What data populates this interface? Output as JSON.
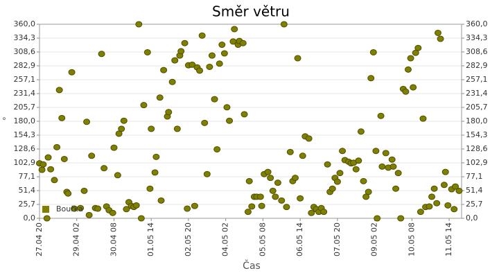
{
  "chart_data": {
    "type": "scatter",
    "title": "Směr větru",
    "x_label": "Čas",
    "y_label": "°",
    "xlim": [
      "27.04 20",
      "12.05 00"
    ],
    "xticks": [
      "27.04 20",
      "29.04 02",
      "30.04 08",
      "01.05 14",
      "02.05 20",
      "04.05 02",
      "05.05 08",
      "06.05 14",
      "07.05 20",
      "09.05 02",
      "10.05 08",
      "11.05 14"
    ],
    "ylim": [
      0,
      360
    ],
    "yticks": [
      {
        "value": 0,
        "label": "0,0"
      },
      {
        "value": 25.7,
        "label": "25,7"
      },
      {
        "value": 51.4,
        "label": "51,4"
      },
      {
        "value": 77.1,
        "label": "77,1"
      },
      {
        "value": 102.9,
        "label": "102,9"
      },
      {
        "value": 128.6,
        "label": "128,6"
      },
      {
        "value": 154.3,
        "label": "154,3"
      },
      {
        "value": 180,
        "label": "180,0"
      },
      {
        "value": 205.7,
        "label": "205,7"
      },
      {
        "value": 231.4,
        "label": "231,4"
      },
      {
        "value": 257.1,
        "label": "257,1"
      },
      {
        "value": 282.9,
        "label": "282,9"
      },
      {
        "value": 308.6,
        "label": "308,6"
      },
      {
        "value": 334.3,
        "label": "334,3"
      },
      {
        "value": 360,
        "label": "360,0"
      }
    ],
    "grid": true,
    "legend": "lower left",
    "series": [
      {
        "name": "Bouřka",
        "color": "#808000",
        "x": [
          "27.04 20",
          "27.04 22",
          "27.04 23",
          "28.04 02",
          "28.04 03",
          "28.04 05",
          "28.04 08",
          "28.04 10",
          "28.04 12",
          "28.04 14",
          "28.04 16",
          "28.04 18",
          "28.04 19",
          "28.04 22",
          "29.04 00",
          "29.04 05",
          "29.04 08",
          "29.04 10",
          "29.04 12",
          "29.04 14",
          "29.04 17",
          "29.04 19",
          "29.04 22",
          "30.04 00",
          "30.04 02",
          "30.04 04",
          "30.04 07",
          "30.04 08",
          "30.04 11",
          "30.04 12",
          "30.04 14",
          "30.04 16",
          "30.04 18",
          "30.04 20",
          "30.04 22",
          "01.05 00",
          "01.05 02",
          "01.05 04",
          "01.05 06",
          "01.05 08",
          "01.05 11",
          "01.05 13",
          "01.05 14",
          "01.05 17",
          "01.05 18",
          "01.05 21",
          "01.05 22",
          "02.05 00",
          "02.05 03",
          "02.05 04",
          "02.05 07",
          "02.05 09",
          "02.05 11",
          "02.05 13",
          "02.05 14",
          "02.05 17",
          "02.05 19",
          "02.05 20",
          "02.05 23",
          "03.05 01",
          "03.05 03",
          "03.05 05",
          "03.05 07",
          "03.05 09",
          "03.05 11",
          "03.05 13",
          "03.05 15",
          "03.05 17",
          "03.05 19",
          "03.05 21",
          "03.05 23",
          "04.05 01",
          "04.05 03",
          "04.05 05",
          "04.05 08",
          "04.05 09",
          "04.05 12",
          "04.05 13",
          "04.05 16",
          "04.05 17",
          "04.05 20",
          "04.05 21",
          "04.05 23",
          "05.05 01",
          "05.05 03",
          "05.05 06",
          "05.05 07",
          "05.05 09",
          "05.05 12",
          "05.05 14",
          "05.05 16",
          "05.05 18",
          "05.05 20",
          "05.05 23",
          "06.05 01",
          "06.05 03",
          "06.05 06",
          "06.05 08",
          "06.05 10",
          "06.05 12",
          "06.05 14",
          "06.05 16",
          "06.05 18",
          "06.05 21",
          "06.05 23",
          "07.05 01",
          "07.05 03",
          "07.05 05",
          "07.05 07",
          "07.05 09",
          "07.05 12",
          "07.05 14",
          "07.05 16",
          "07.05 18",
          "07.05 20",
          "07.05 22",
          "08.05 00",
          "08.05 02",
          "08.05 05",
          "08.05 07",
          "08.05 09",
          "08.05 11",
          "08.05 13",
          "08.05 15",
          "08.05 17",
          "08.05 19",
          "08.05 21",
          "08.05 23",
          "09.05 01",
          "09.05 03",
          "09.05 04",
          "09.05 07",
          "09.05 08",
          "09.05 11",
          "09.05 13",
          "09.05 16",
          "09.05 17",
          "09.05 19",
          "09.05 21",
          "09.05 23",
          "10.05 01",
          "10.05 03",
          "10.05 05",
          "10.05 07",
          "10.05 09",
          "10.05 11",
          "10.05 13",
          "10.05 15",
          "10.05 17",
          "10.05 19",
          "10.05 22",
          "11.05 00",
          "11.05 02",
          "11.05 04",
          "11.05 05",
          "11.05 07",
          "11.05 10",
          "11.05 11",
          "11.05 13",
          "11.05 16",
          "11.05 18",
          "11.05 19",
          "11.05 22"
        ],
        "values": [
          102,
          90,
          100,
          0,
          113,
          91,
          71,
          132,
          238,
          186,
          110,
          49,
          46,
          271,
          18,
          19,
          51,
          179,
          6,
          116,
          19,
          18,
          305,
          93,
          22,
          15,
          10,
          131,
          80,
          157,
          166,
          181,
          17,
          30,
          23,
          21,
          24,
          360,
          0,
          210,
          308,
          55,
          166,
          85,
          114,
          224,
          33,
          275,
          189,
          197,
          253,
          293,
          166,
          302,
          310,
          325,
          18,
          284,
          285,
          23,
          280,
          274,
          339,
          177,
          82,
          281,
          302,
          221,
          128,
          287,
          322,
          306,
          206,
          181,
          328,
          351,
          322,
          329,
          325,
          193,
          12,
          69,
          22,
          40,
          40,
          40,
          23,
          82,
          86,
          75,
          51,
          40,
          66,
          33,
          360,
          21,
          123,
          69,
          75,
          297,
          37,
          116,
          152,
          148,
          10,
          21,
          17,
          12,
          19,
          12,
          100,
          49,
          55,
          75,
          68,
          84,
          125,
          108,
          105,
          102,
          103,
          91,
          107,
          161,
          69,
          40,
          49,
          260,
          308,
          125,
          0,
          190,
          96,
          121,
          94,
          109,
          96,
          55,
          84,
          0,
          240,
          235,
          276,
          297,
          243,
          307,
          316,
          12,
          185,
          21,
          22,
          40,
          55,
          28,
          344,
          333,
          62,
          86,
          24,
          54,
          17,
          59,
          51
        ]
      }
    ]
  }
}
